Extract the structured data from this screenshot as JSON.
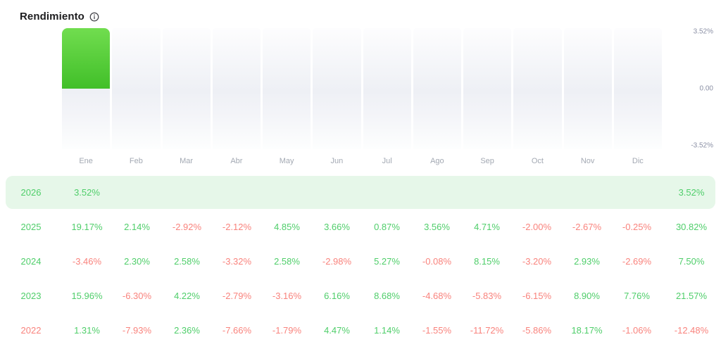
{
  "header": {
    "title": "Rendimiento"
  },
  "chart": {
    "months": [
      "Ene",
      "Feb",
      "Mar",
      "Abr",
      "May",
      "Jun",
      "Jul",
      "Ago",
      "Sep",
      "Oct",
      "Nov",
      "Dic"
    ],
    "y_ticks": [
      "3.52%",
      "0.00",
      "-3.52%"
    ]
  },
  "chart_data": {
    "type": "bar",
    "title": "Rendimiento",
    "categories": [
      "Ene",
      "Feb",
      "Mar",
      "Abr",
      "May",
      "Jun",
      "Jul",
      "Ago",
      "Sep",
      "Oct",
      "Nov",
      "Dic"
    ],
    "values": [
      3.52,
      null,
      null,
      null,
      null,
      null,
      null,
      null,
      null,
      null,
      null,
      null
    ],
    "xlabel": "",
    "ylabel": "",
    "ylim": [
      -3.52,
      3.52
    ],
    "y_tick_labels": [
      "3.52%",
      "0.00",
      "-3.52%"
    ],
    "grid": false,
    "legend": false,
    "bar_color_positive": "#4fc32f"
  },
  "table": {
    "rows": [
      {
        "year": "2026",
        "highlight": true,
        "values": [
          "3.52%",
          "",
          "",
          "",
          "",
          "",
          "",
          "",
          "",
          "",
          "",
          ""
        ],
        "total": "3.52%"
      },
      {
        "year": "2025",
        "highlight": false,
        "values": [
          "19.17%",
          "2.14%",
          "-2.92%",
          "-2.12%",
          "4.85%",
          "3.66%",
          "0.87%",
          "3.56%",
          "4.71%",
          "-2.00%",
          "-2.67%",
          "-0.25%"
        ],
        "total": "30.82%"
      },
      {
        "year": "2024",
        "highlight": false,
        "values": [
          "-3.46%",
          "2.30%",
          "2.58%",
          "-3.32%",
          "2.58%",
          "-2.98%",
          "5.27%",
          "-0.08%",
          "8.15%",
          "-3.20%",
          "2.93%",
          "-2.69%"
        ],
        "total": "7.50%"
      },
      {
        "year": "2023",
        "highlight": false,
        "values": [
          "15.96%",
          "-6.30%",
          "4.22%",
          "-2.79%",
          "-3.16%",
          "6.16%",
          "8.68%",
          "-4.68%",
          "-5.83%",
          "-6.15%",
          "8.90%",
          "7.76%"
        ],
        "total": "21.57%"
      },
      {
        "year": "2022",
        "highlight": false,
        "values": [
          "1.31%",
          "-7.93%",
          "2.36%",
          "-7.66%",
          "-1.79%",
          "4.47%",
          "1.14%",
          "-1.55%",
          "-11.72%",
          "-5.86%",
          "18.17%",
          "-1.06%"
        ],
        "total": "-12.48%"
      }
    ]
  },
  "colors": {
    "positive_text": "#4fce6a",
    "negative_text": "#f9837d",
    "highlight_row_bg": "#e6f7e9",
    "bar_gradient_top": "#71dd4f",
    "bar_gradient_bottom": "#41bf29"
  }
}
